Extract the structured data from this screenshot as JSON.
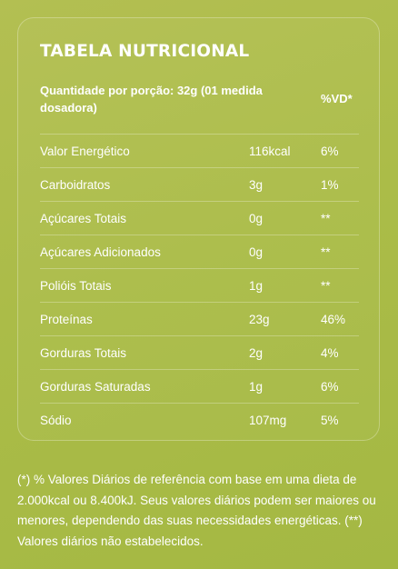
{
  "title": "TABELA NUTRICIONAL",
  "header": {
    "portion": "Quantidade por porção: 32g (01 medida dosadora)",
    "vd": "%VD*"
  },
  "rows": [
    {
      "name": "Valor Energético",
      "qty": "116kcal",
      "vd": "6%"
    },
    {
      "name": "Carboidratos",
      "qty": "3g",
      "vd": "1%"
    },
    {
      "name": "Açúcares Totais",
      "qty": "0g",
      "vd": "**"
    },
    {
      "name": "Açúcares Adicionados",
      "qty": "0g",
      "vd": "**"
    },
    {
      "name": "Polióis Totais",
      "qty": "1g",
      "vd": "**"
    },
    {
      "name": "Proteínas",
      "qty": "23g",
      "vd": "46%"
    },
    {
      "name": "Gorduras Totais",
      "qty": "2g",
      "vd": "4%"
    },
    {
      "name": "Gorduras Saturadas",
      "qty": "1g",
      "vd": "6%"
    },
    {
      "name": "Sódio",
      "qty": "107mg",
      "vd": "5%"
    }
  ],
  "footnote": "(*) % Valores Diários de referência com base em uma dieta de 2.000kcal ou 8.400kJ. Seus valores diários podem ser maiores ou menores, dependendo das suas necessidades energéticas. (**) Valores diários não estabelecidos.",
  "colors": {
    "background": "#abbc48",
    "text": "#ffffff"
  }
}
